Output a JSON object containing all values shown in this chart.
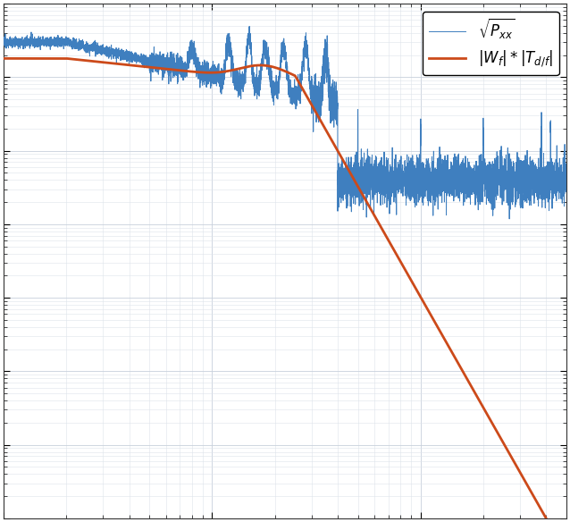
{
  "line1_color": "#3f7fbf",
  "line2_color": "#cc4a1a",
  "legend1": "$\\sqrt{P_{xx}}$",
  "legend2": "$|W_f| * |T_{d/f}|$",
  "background_color": "#ffffff",
  "grid_color_major": "#c8d0dc",
  "grid_color_minor": "#dde3eb",
  "figsize": [
    6.38,
    5.84
  ],
  "dpi": 100,
  "xlim": [
    1,
    500
  ],
  "ylim": [
    1e-12,
    1e-05
  ],
  "spine_color": "#333333"
}
